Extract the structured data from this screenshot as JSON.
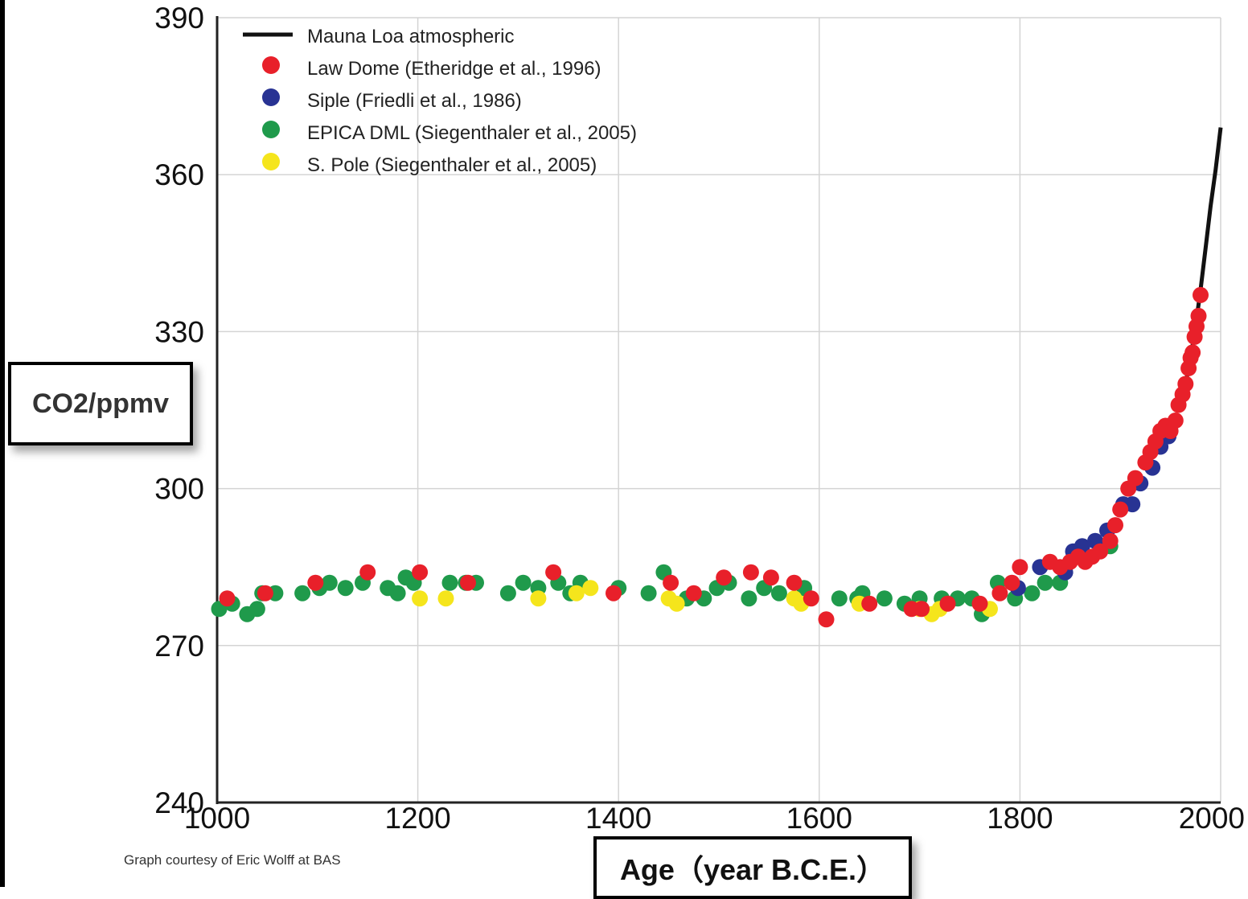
{
  "chart_data": {
    "type": "scatter",
    "xlabel": "Age（year B.C.E.）",
    "ylabel": "CO2/ppmv",
    "xlim": [
      1000,
      2000
    ],
    "ylim": [
      240,
      390
    ],
    "xticks": [
      1000,
      1200,
      1400,
      1600,
      1800,
      2000
    ],
    "yticks": [
      240,
      270,
      300,
      330,
      360,
      390
    ],
    "grid": true,
    "legend_position": "top-left",
    "credit": "Graph courtesy of Eric Wolff at BAS",
    "series": [
      {
        "name": "Mauna Loa atmospheric",
        "kind": "line",
        "color": "#111111",
        "points": [
          [
            1958,
            315
          ],
          [
            1965,
            320
          ],
          [
            1970,
            325
          ],
          [
            1975,
            331
          ],
          [
            1980,
            338
          ],
          [
            1985,
            346
          ],
          [
            1990,
            354
          ],
          [
            1995,
            361
          ],
          [
            2000,
            369
          ]
        ]
      },
      {
        "name": "Law Dome (Etheridge et al., 1996)",
        "kind": "points",
        "color": "#e8202a",
        "points": [
          [
            1010,
            279
          ],
          [
            1048,
            280
          ],
          [
            1098,
            282
          ],
          [
            1150,
            284
          ],
          [
            1202,
            284
          ],
          [
            1250,
            282
          ],
          [
            1335,
            284
          ],
          [
            1395,
            280
          ],
          [
            1452,
            282
          ],
          [
            1475,
            280
          ],
          [
            1505,
            283
          ],
          [
            1532,
            284
          ],
          [
            1552,
            283
          ],
          [
            1575,
            282
          ],
          [
            1592,
            279
          ],
          [
            1607,
            275
          ],
          [
            1650,
            278
          ],
          [
            1692,
            277
          ],
          [
            1702,
            277
          ],
          [
            1728,
            278
          ],
          [
            1760,
            278
          ],
          [
            1780,
            280
          ],
          [
            1792,
            282
          ],
          [
            1800,
            285
          ],
          [
            1830,
            286
          ],
          [
            1840,
            285
          ],
          [
            1850,
            286
          ],
          [
            1858,
            287
          ],
          [
            1865,
            286
          ],
          [
            1872,
            287
          ],
          [
            1880,
            288
          ],
          [
            1890,
            290
          ],
          [
            1895,
            293
          ],
          [
            1900,
            296
          ],
          [
            1908,
            300
          ],
          [
            1915,
            302
          ],
          [
            1925,
            305
          ],
          [
            1930,
            307
          ],
          [
            1935,
            309
          ],
          [
            1940,
            311
          ],
          [
            1945,
            312
          ],
          [
            1950,
            311
          ],
          [
            1955,
            313
          ],
          [
            1958,
            316
          ],
          [
            1962,
            318
          ],
          [
            1965,
            320
          ],
          [
            1968,
            323
          ],
          [
            1970,
            325
          ],
          [
            1972,
            326
          ],
          [
            1974,
            329
          ],
          [
            1976,
            331
          ],
          [
            1978,
            333
          ],
          [
            1980,
            337
          ]
        ]
      },
      {
        "name": "Siple (Friedli et al., 1986)",
        "kind": "points",
        "color": "#283393",
        "points": [
          [
            1798,
            281
          ],
          [
            1820,
            285
          ],
          [
            1845,
            284
          ],
          [
            1853,
            288
          ],
          [
            1862,
            289
          ],
          [
            1875,
            290
          ],
          [
            1887,
            292
          ],
          [
            1903,
            297
          ],
          [
            1912,
            297
          ],
          [
            1920,
            301
          ],
          [
            1932,
            304
          ],
          [
            1940,
            308
          ],
          [
            1948,
            310
          ]
        ]
      },
      {
        "name": "EPICA DML (Siegenthaler et al., 2005)",
        "kind": "points",
        "color": "#1f9a4b",
        "points": [
          [
            1002,
            277
          ],
          [
            1015,
            278
          ],
          [
            1030,
            276
          ],
          [
            1040,
            277
          ],
          [
            1045,
            280
          ],
          [
            1058,
            280
          ],
          [
            1085,
            280
          ],
          [
            1102,
            281
          ],
          [
            1112,
            282
          ],
          [
            1128,
            281
          ],
          [
            1145,
            282
          ],
          [
            1170,
            281
          ],
          [
            1180,
            280
          ],
          [
            1188,
            283
          ],
          [
            1196,
            282
          ],
          [
            1232,
            282
          ],
          [
            1248,
            282
          ],
          [
            1258,
            282
          ],
          [
            1290,
            280
          ],
          [
            1305,
            282
          ],
          [
            1320,
            281
          ],
          [
            1340,
            282
          ],
          [
            1352,
            280
          ],
          [
            1362,
            282
          ],
          [
            1400,
            281
          ],
          [
            1430,
            280
          ],
          [
            1445,
            284
          ],
          [
            1468,
            279
          ],
          [
            1485,
            279
          ],
          [
            1498,
            281
          ],
          [
            1510,
            282
          ],
          [
            1530,
            279
          ],
          [
            1545,
            281
          ],
          [
            1560,
            280
          ],
          [
            1585,
            281
          ],
          [
            1620,
            279
          ],
          [
            1638,
            279
          ],
          [
            1643,
            280
          ],
          [
            1665,
            279
          ],
          [
            1685,
            278
          ],
          [
            1700,
            279
          ],
          [
            1722,
            279
          ],
          [
            1738,
            279
          ],
          [
            1752,
            279
          ],
          [
            1762,
            276
          ],
          [
            1778,
            282
          ],
          [
            1795,
            279
          ],
          [
            1812,
            280
          ],
          [
            1825,
            282
          ],
          [
            1840,
            282
          ],
          [
            1890,
            289
          ]
        ]
      },
      {
        "name": "S. Pole (Siegenthaler et al., 2005)",
        "kind": "points",
        "color": "#f5e51c",
        "points": [
          [
            1202,
            279
          ],
          [
            1228,
            279
          ],
          [
            1320,
            279
          ],
          [
            1358,
            280
          ],
          [
            1372,
            281
          ],
          [
            1450,
            279
          ],
          [
            1458,
            278
          ],
          [
            1575,
            279
          ],
          [
            1582,
            278
          ],
          [
            1640,
            278
          ],
          [
            1700,
            277
          ],
          [
            1712,
            276
          ],
          [
            1720,
            277
          ],
          [
            1770,
            277
          ]
        ]
      }
    ]
  }
}
